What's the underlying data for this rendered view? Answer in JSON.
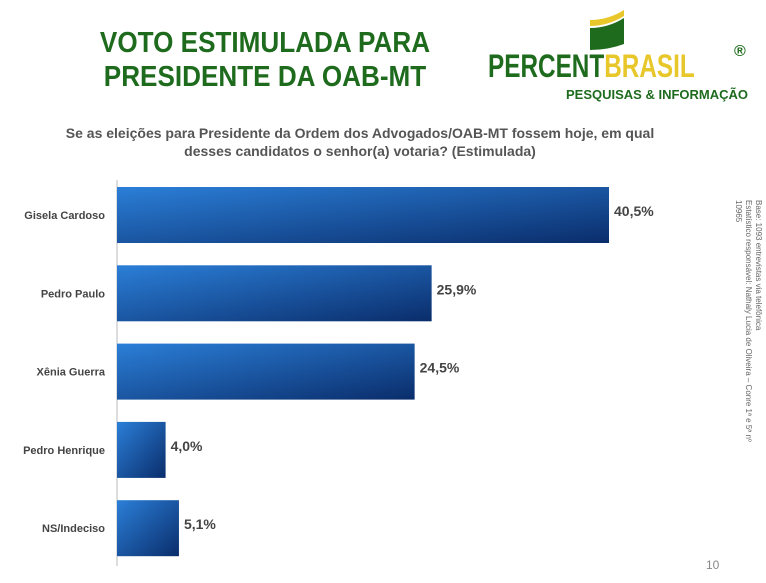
{
  "title": [
    "VOTO ESTIMULADA PARA",
    "PRESIDENTE  DA OAB-MT"
  ],
  "logo": {
    "part1": "PERCENT",
    "part2": "BRASIL",
    "registered": "®",
    "tagline": "PESQUISAS & INFORMAÇÃO"
  },
  "side_note": [
    "Base: 1093 entrevistas via telefônica",
    "Estatístico responsável: Nathaly Lucia de Oliveira – Conre 1ª e 5ª nº 10965"
  ],
  "page_number": "10",
  "colors": {
    "bar_dark": "#0a2d6b",
    "bar_light": "#2b7fd8",
    "title": "#1e6b1e"
  },
  "chart_data": {
    "type": "bar",
    "orientation": "horizontal",
    "title": "Se as eleições para Presidente da Ordem dos Advogados/OAB-MT fossem hoje, em qual desses candidatos o senhor(a) votaria? (Estimulada)",
    "categories": [
      "Gisela Cardoso",
      "Pedro Paulo",
      "Xênia Guerra",
      "Pedro Henrique",
      "NS/Indeciso"
    ],
    "values": [
      40.5,
      25.9,
      24.5,
      4.0,
      5.1
    ],
    "labels": [
      "40,5%",
      "25,9%",
      "24,5%",
      "4,0%",
      "5,1%"
    ],
    "xlim": [
      0,
      45
    ],
    "grid": false
  }
}
